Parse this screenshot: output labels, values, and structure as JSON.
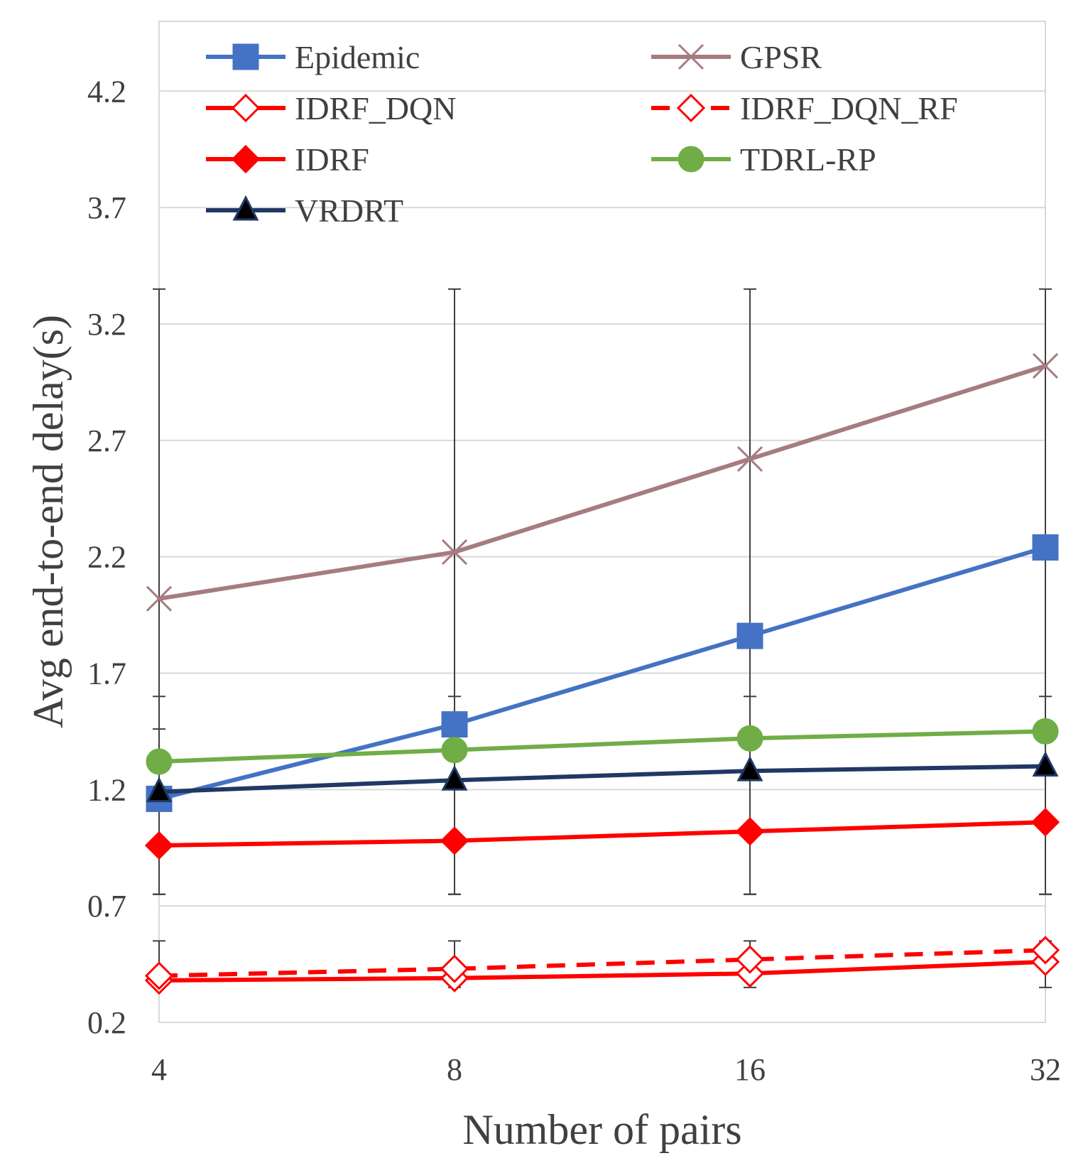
{
  "chart_data": {
    "type": "line",
    "title": "",
    "xlabel": "Number of pairs",
    "ylabel": "Avg end-to-end delay(s)",
    "categories": [
      "4",
      "8",
      "16",
      "32"
    ],
    "ylim": [
      0.2,
      4.5
    ],
    "yticks": [
      "0.2",
      "0.7",
      "1.2",
      "1.7",
      "2.2",
      "2.7",
      "3.2",
      "3.7",
      "4.2"
    ],
    "grid": true,
    "legend_position": "top",
    "series": [
      {
        "name": "Epidemic",
        "values": [
          1.16,
          1.48,
          1.86,
          2.24
        ],
        "color": "#4472C4",
        "marker": "square",
        "dashed": false
      },
      {
        "name": "GPSR",
        "values": [
          2.02,
          2.22,
          2.62,
          3.02
        ],
        "color": "#A67C80",
        "marker": "x",
        "dashed": false
      },
      {
        "name": "IDRF_DQN",
        "values": [
          0.38,
          0.39,
          0.41,
          0.46
        ],
        "color": "#FF0000",
        "marker": "diamond-open",
        "dashed": false
      },
      {
        "name": "IDRF_DQN_RF",
        "values": [
          0.4,
          0.43,
          0.47,
          0.51
        ],
        "color": "#FF0000",
        "marker": "diamond-open",
        "dashed": true
      },
      {
        "name": "IDRF",
        "values": [
          0.96,
          0.98,
          1.02,
          1.06
        ],
        "color": "#FF0000",
        "marker": "diamond",
        "dashed": false
      },
      {
        "name": "TDRL-RP",
        "values": [
          1.32,
          1.37,
          1.42,
          1.45
        ],
        "color": "#70AD47",
        "marker": "circle",
        "dashed": false
      },
      {
        "name": "VRDRT",
        "values": [
          1.19,
          1.24,
          1.28,
          1.3
        ],
        "color": "#203864",
        "marker": "triangle",
        "dashed": false
      }
    ],
    "error_bars": [
      {
        "series": "GPSR",
        "lows": [
          0.75,
          0.75,
          0.75,
          0.75
        ],
        "highs": [
          3.35,
          3.35,
          3.35,
          3.35
        ]
      },
      {
        "series": "Epidemic",
        "lows": [
          0.75,
          0.75,
          0.75,
          0.75
        ],
        "highs": [
          1.6,
          1.6,
          1.6,
          1.6
        ]
      },
      {
        "series": "IDRF",
        "lows": [
          0.75,
          0.75,
          0.75,
          0.75
        ],
        "highs": [
          1.46,
          1.46,
          1.46,
          1.46
        ]
      },
      {
        "series": "IDRF_DQN",
        "lows": [
          0.35,
          0.35,
          0.35,
          0.35
        ],
        "highs": [
          0.55,
          0.55,
          0.55,
          0.55
        ]
      }
    ]
  }
}
